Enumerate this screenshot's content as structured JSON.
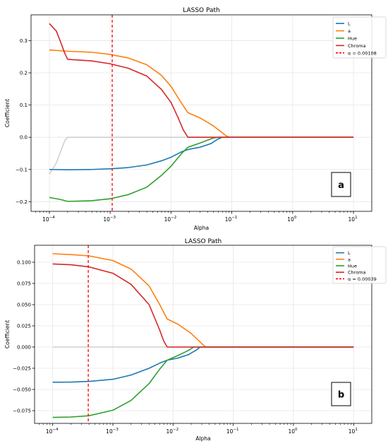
{
  "figure": {
    "background": "#ffffff"
  },
  "chart_data": [
    {
      "panel_label": "a",
      "type": "line",
      "title": "LASSO Path",
      "xlabel": "Alpha",
      "ylabel": "Coefficient",
      "x_scale": "log",
      "xlim": [
        5e-05,
        20
      ],
      "ylim": [
        -0.23,
        0.38
      ],
      "x_ticks": [
        0.0001,
        0.001,
        0.01,
        0.1,
        1,
        10
      ],
      "x_tick_labels": [
        [
          "10",
          "−4"
        ],
        [
          "10",
          "−3"
        ],
        [
          "10",
          "−2"
        ],
        [
          "10",
          "−1"
        ],
        [
          "10",
          "0"
        ],
        [
          "10",
          "1"
        ]
      ],
      "y_ticks": [
        -0.2,
        -0.1,
        0.0,
        0.1,
        0.2,
        0.3
      ],
      "y_tick_labels": [
        "−0.2",
        "−0.1",
        "0.0",
        "0.1",
        "0.2",
        "0.3"
      ],
      "grid": true,
      "legend_position": "top-right",
      "zero_path_color": "#c8c8c8",
      "zero_path": [
        [
          0.0001,
          -0.115
        ],
        [
          0.00013,
          -0.08
        ],
        [
          0.00016,
          -0.035
        ],
        [
          0.00018,
          -0.01
        ],
        [
          0.0002,
          0.0
        ],
        [
          10,
          0.0
        ]
      ],
      "series": [
        {
          "name": "L",
          "color": "#1f77b4",
          "points": [
            [
              0.0001,
              -0.1
            ],
            [
              0.0002,
              -0.101
            ],
            [
              0.0005,
              -0.1
            ],
            [
              0.001,
              -0.098
            ],
            [
              0.002,
              -0.094
            ],
            [
              0.004,
              -0.086
            ],
            [
              0.007,
              -0.073
            ],
            [
              0.01,
              -0.062
            ],
            [
              0.015,
              -0.045
            ],
            [
              0.02,
              -0.037
            ],
            [
              0.03,
              -0.031
            ],
            [
              0.045,
              -0.02
            ],
            [
              0.06,
              -0.005
            ],
            [
              0.07,
              0.0
            ],
            [
              10,
              0.0
            ]
          ]
        },
        {
          "name": "a",
          "color": "#ff7f0e",
          "points": [
            [
              0.0001,
              0.271
            ],
            [
              0.0002,
              0.267
            ],
            [
              0.0005,
              0.264
            ],
            [
              0.001,
              0.257
            ],
            [
              0.002,
              0.246
            ],
            [
              0.004,
              0.225
            ],
            [
              0.007,
              0.192
            ],
            [
              0.01,
              0.158
            ],
            [
              0.015,
              0.105
            ],
            [
              0.019,
              0.076
            ],
            [
              0.03,
              0.06
            ],
            [
              0.05,
              0.035
            ],
            [
              0.08,
              0.005
            ],
            [
              0.09,
              0.0
            ],
            [
              10,
              0.0
            ]
          ]
        },
        {
          "name": "Hue",
          "color": "#2ca02c",
          "points": [
            [
              0.0001,
              -0.187
            ],
            [
              0.00015,
              -0.193
            ],
            [
              0.0002,
              -0.199
            ],
            [
              0.0005,
              -0.197
            ],
            [
              0.001,
              -0.191
            ],
            [
              0.002,
              -0.178
            ],
            [
              0.004,
              -0.155
            ],
            [
              0.007,
              -0.118
            ],
            [
              0.01,
              -0.09
            ],
            [
              0.015,
              -0.05
            ],
            [
              0.019,
              -0.031
            ],
            [
              0.03,
              -0.018
            ],
            [
              0.05,
              -0.002
            ],
            [
              0.06,
              0.0
            ],
            [
              10,
              0.0
            ]
          ]
        },
        {
          "name": "Chroma",
          "color": "#d62728",
          "points": [
            [
              0.0001,
              0.353
            ],
            [
              0.00013,
              0.33
            ],
            [
              0.00015,
              0.3
            ],
            [
              0.00018,
              0.26
            ],
            [
              0.0002,
              0.242
            ],
            [
              0.0005,
              0.237
            ],
            [
              0.001,
              0.228
            ],
            [
              0.002,
              0.214
            ],
            [
              0.004,
              0.19
            ],
            [
              0.007,
              0.148
            ],
            [
              0.01,
              0.108
            ],
            [
              0.013,
              0.062
            ],
            [
              0.016,
              0.022
            ],
            [
              0.019,
              0.0
            ],
            [
              10,
              0.0
            ]
          ]
        }
      ],
      "vline": {
        "label": "α = 0.00108",
        "x": 0.00108,
        "color": "#ff0000"
      }
    },
    {
      "panel_label": "b",
      "type": "line",
      "title": "LASSO Path",
      "xlabel": "Alpha",
      "ylabel": "Coefficient",
      "x_scale": "log",
      "xlim": [
        5e-05,
        20
      ],
      "ylim": [
        -0.09,
        0.12
      ],
      "x_ticks": [
        0.0001,
        0.001,
        0.01,
        0.1,
        1,
        10
      ],
      "x_tick_labels": [
        [
          "10",
          "−4"
        ],
        [
          "10",
          "−3"
        ],
        [
          "10",
          "−2"
        ],
        [
          "10",
          "−1"
        ],
        [
          "10",
          "0"
        ],
        [
          "10",
          "1"
        ]
      ],
      "y_ticks": [
        -0.075,
        -0.05,
        -0.025,
        0.0,
        0.025,
        0.05,
        0.075,
        0.1
      ],
      "y_tick_labels": [
        "−0.075",
        "−0.050",
        "−0.025",
        "0.000",
        "0.025",
        "0.050",
        "0.075",
        "0.100"
      ],
      "grid": true,
      "legend_position": "top-right",
      "zero_path_color": "#c8c8c8",
      "zero_path": [
        [
          0.0001,
          0.0
        ],
        [
          10,
          0.0
        ]
      ],
      "series": [
        {
          "name": "L",
          "color": "#1f77b4",
          "points": [
            [
              0.0001,
              -0.0415
            ],
            [
              0.0002,
              -0.0413
            ],
            [
              0.0004,
              -0.0405
            ],
            [
              0.001,
              -0.038
            ],
            [
              0.002,
              -0.033
            ],
            [
              0.004,
              -0.025
            ],
            [
              0.006,
              -0.019
            ],
            [
              0.008,
              -0.0155
            ],
            [
              0.012,
              -0.013
            ],
            [
              0.018,
              -0.009
            ],
            [
              0.025,
              -0.003
            ],
            [
              0.028,
              0.0
            ],
            [
              10,
              0.0
            ]
          ]
        },
        {
          "name": "a",
          "color": "#ff7f0e",
          "points": [
            [
              0.0001,
              0.11
            ],
            [
              0.0002,
              0.109
            ],
            [
              0.0004,
              0.1075
            ],
            [
              0.001,
              0.102
            ],
            [
              0.002,
              0.092
            ],
            [
              0.004,
              0.072
            ],
            [
              0.006,
              0.05
            ],
            [
              0.008,
              0.033
            ],
            [
              0.012,
              0.027
            ],
            [
              0.02,
              0.016
            ],
            [
              0.03,
              0.004
            ],
            [
              0.035,
              0.0
            ],
            [
              10,
              0.0
            ]
          ]
        },
        {
          "name": "Hue",
          "color": "#2ca02c",
          "points": [
            [
              0.0001,
              -0.083
            ],
            [
              0.0002,
              -0.0825
            ],
            [
              0.0004,
              -0.081
            ],
            [
              0.001,
              -0.0745
            ],
            [
              0.002,
              -0.063
            ],
            [
              0.004,
              -0.043
            ],
            [
              0.006,
              -0.026
            ],
            [
              0.008,
              -0.0155
            ],
            [
              0.012,
              -0.01
            ],
            [
              0.018,
              -0.004
            ],
            [
              0.022,
              0.0
            ],
            [
              10,
              0.0
            ]
          ]
        },
        {
          "name": "Chroma",
          "color": "#d62728",
          "points": [
            [
              0.0001,
              0.098
            ],
            [
              0.0002,
              0.097
            ],
            [
              0.0004,
              0.0945
            ],
            [
              0.001,
              0.087
            ],
            [
              0.002,
              0.074
            ],
            [
              0.004,
              0.05
            ],
            [
              0.006,
              0.02
            ],
            [
              0.007,
              0.007
            ],
            [
              0.008,
              0.0
            ],
            [
              10,
              0.0
            ]
          ]
        }
      ],
      "vline": {
        "label": "α = 0.00039",
        "x": 0.00039,
        "color": "#ff0000"
      }
    }
  ]
}
